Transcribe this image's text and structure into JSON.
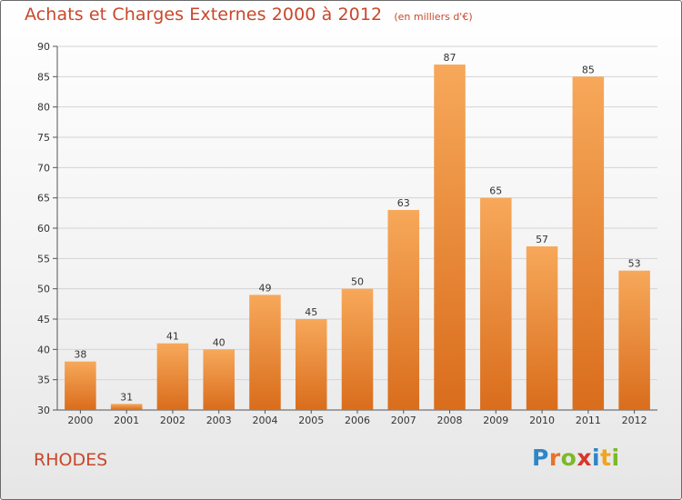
{
  "header": {
    "title": "Achats et Charges Externes 2000 à 2012",
    "subtitle": "(en milliers d'€)"
  },
  "footer": {
    "place": "RHODES",
    "brand_letters": [
      {
        "ch": "P",
        "color": "#2e86c8"
      },
      {
        "ch": "r",
        "color": "#e8732a"
      },
      {
        "ch": "o",
        "color": "#7cb928"
      },
      {
        "ch": "x",
        "color": "#d9362b"
      },
      {
        "ch": "i",
        "color": "#2e86c8"
      },
      {
        "ch": "t",
        "color": "#f0a51e"
      },
      {
        "ch": "i",
        "color": "#7cb928"
      }
    ]
  },
  "chart_data": {
    "type": "bar",
    "title": "Achats et Charges Externes 2000 à 2012",
    "subtitle": "(en milliers d'€)",
    "categories": [
      "2000",
      "2001",
      "2002",
      "2003",
      "2004",
      "2005",
      "2006",
      "2007",
      "2008",
      "2009",
      "2010",
      "2011",
      "2012"
    ],
    "values": [
      38,
      31,
      41,
      40,
      49,
      45,
      50,
      63,
      87,
      65,
      57,
      85,
      53
    ],
    "ylim": [
      30,
      90
    ],
    "yticks": [
      30,
      35,
      40,
      45,
      50,
      55,
      60,
      65,
      70,
      75,
      80,
      85,
      90
    ],
    "grid": true,
    "bar_color_top": "#f7a85a",
    "bar_color_bottom": "#d96d1c",
    "data_labels": true
  }
}
